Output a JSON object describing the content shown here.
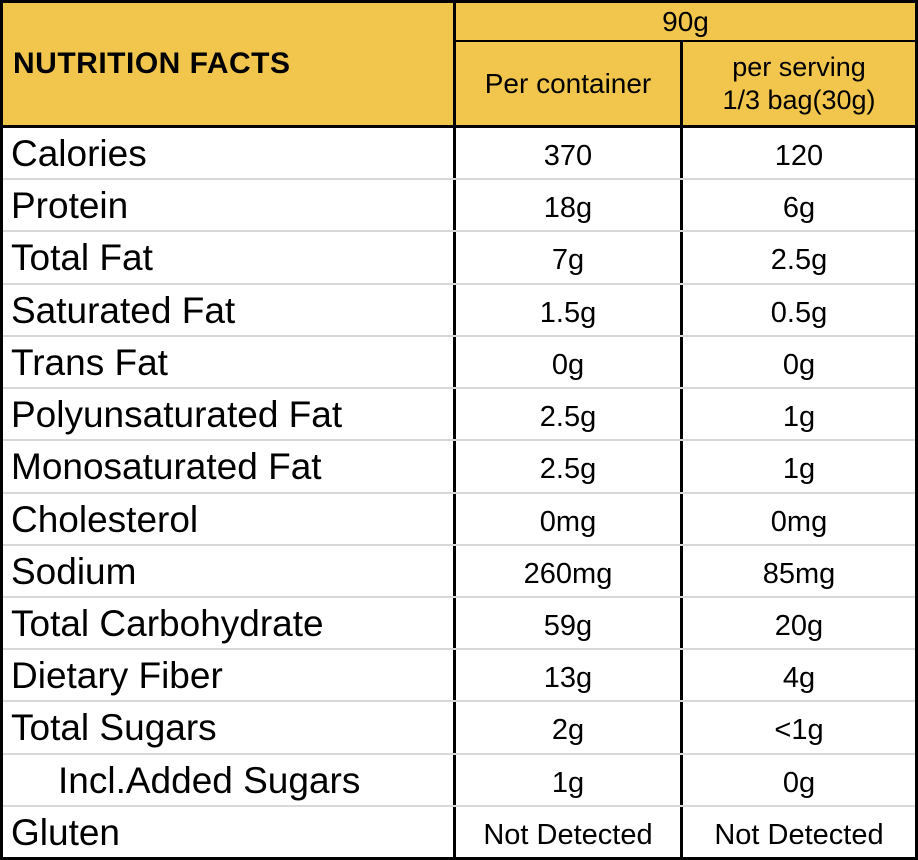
{
  "header": {
    "title": "NUTRITION FACTS",
    "total_weight": "90g",
    "col_per_container": "Per container",
    "col_per_serving_line1": "per serving",
    "col_per_serving_line2": "1/3 bag(30g)"
  },
  "colors": {
    "header_bg": "#f2c64d",
    "border": "#000000",
    "row_divider": "#d8d8d8"
  },
  "rows": [
    {
      "label": "Calories",
      "per_container": "370",
      "per_serving": "120",
      "indent": false
    },
    {
      "label": "Protein",
      "per_container": "18g",
      "per_serving": "6g",
      "indent": false
    },
    {
      "label": "Total Fat",
      "per_container": "7g",
      "per_serving": "2.5g",
      "indent": false
    },
    {
      "label": "Saturated Fat",
      "per_container": "1.5g",
      "per_serving": "0.5g",
      "indent": false
    },
    {
      "label": "Trans Fat",
      "per_container": "0g",
      "per_serving": "0g",
      "indent": false
    },
    {
      "label": "Polyunsaturated Fat",
      "per_container": "2.5g",
      "per_serving": "1g",
      "indent": false
    },
    {
      "label": "Monosaturated Fat",
      "per_container": "2.5g",
      "per_serving": "1g",
      "indent": false
    },
    {
      "label": "Cholesterol",
      "per_container": "0mg",
      "per_serving": "0mg",
      "indent": false
    },
    {
      "label": "Sodium",
      "per_container": "260mg",
      "per_serving": "85mg",
      "indent": false
    },
    {
      "label": "Total Carbohydrate",
      "per_container": "59g",
      "per_serving": "20g",
      "indent": false
    },
    {
      "label": "Dietary Fiber",
      "per_container": "13g",
      "per_serving": "4g",
      "indent": false
    },
    {
      "label": "Total Sugars",
      "per_container": "2g",
      "per_serving": "<1g",
      "indent": false
    },
    {
      "label": "Incl.Added Sugars",
      "per_container": "1g",
      "per_serving": "0g",
      "indent": true
    },
    {
      "label": "Gluten",
      "per_container": "Not Detected",
      "per_serving": "Not Detected",
      "indent": false
    }
  ]
}
